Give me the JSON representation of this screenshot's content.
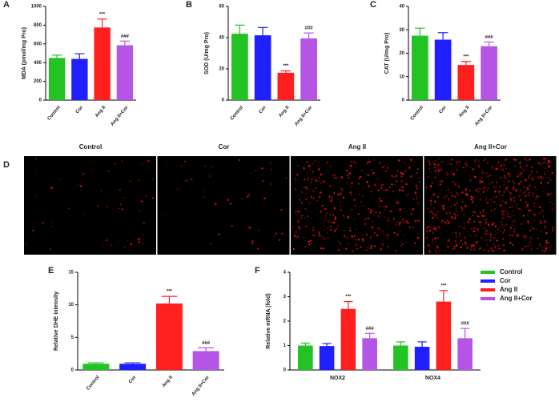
{
  "chart_data": [
    {
      "type": "bar",
      "panel": "A",
      "ylabel": "MDA (pmol/mg Pro)",
      "categories": [
        "Control",
        "Cor",
        "Ang II",
        "Ang II+Cor"
      ],
      "values": [
        450,
        440,
        775,
        585
      ],
      "errors": [
        30,
        55,
        90,
        45
      ],
      "annotations": [
        null,
        null,
        "***",
        "###"
      ],
      "colors": [
        "#22c322",
        "#1f1fff",
        "#ff1f1f",
        "#b455e6"
      ],
      "ylim": [
        0,
        1000
      ],
      "yticks": [
        0,
        200,
        400,
        600,
        800,
        1000
      ]
    },
    {
      "type": "bar",
      "panel": "B",
      "ylabel": "SOD (U/mg Pro)",
      "categories": [
        "Control",
        "Cor",
        "Ang II",
        "Ang II+Cor"
      ],
      "values": [
        42.5,
        41.5,
        17.5,
        39.5
      ],
      "errors": [
        5.5,
        5,
        1.2,
        3.5
      ],
      "annotations": [
        null,
        null,
        "***",
        "###"
      ],
      "colors": [
        "#22c322",
        "#1f1fff",
        "#ff1f1f",
        "#b455e6"
      ],
      "ylim": [
        0,
        60
      ],
      "yticks": [
        0,
        20,
        40,
        60
      ]
    },
    {
      "type": "bar",
      "panel": "C",
      "ylabel": "CAT (U/mg Pro)",
      "categories": [
        "Control",
        "Cor",
        "Ang II",
        "Ang II+Cor"
      ],
      "values": [
        27.5,
        25.8,
        15,
        23
      ],
      "errors": [
        3.2,
        3,
        1.5,
        1.8
      ],
      "annotations": [
        null,
        null,
        "***",
        "###"
      ],
      "colors": [
        "#22c322",
        "#1f1fff",
        "#ff1f1f",
        "#b455e6"
      ],
      "ylim": [
        0,
        40
      ],
      "yticks": [
        0,
        10,
        20,
        30,
        40
      ]
    },
    {
      "type": "bar",
      "panel": "E",
      "ylabel": "Relative DHE intensity",
      "categories": [
        "Control",
        "Cor",
        "Ang II",
        "Ang II+Cor"
      ],
      "values": [
        0.95,
        0.95,
        10.2,
        2.9
      ],
      "errors": [
        0.15,
        0.15,
        1.1,
        0.5
      ],
      "annotations": [
        null,
        null,
        "***",
        "###"
      ],
      "colors": [
        "#22c322",
        "#1f1fff",
        "#ff1f1f",
        "#b455e6"
      ],
      "ylim": [
        0,
        15
      ],
      "yticks": [
        0,
        5,
        10,
        15
      ]
    },
    {
      "type": "grouped-bar",
      "panel": "F",
      "ylabel": "Relative mRNA (fold)",
      "categories": [
        "NOX2",
        "NOX4"
      ],
      "series": [
        {
          "name": "Control",
          "color": "#22c322",
          "values": [
            1,
            1
          ],
          "errors": [
            0.1,
            0.15
          ],
          "annotations": [
            null,
            null
          ]
        },
        {
          "name": "Cor",
          "color": "#1f1fff",
          "values": [
            0.98,
            0.95
          ],
          "errors": [
            0.1,
            0.2
          ],
          "annotations": [
            null,
            null
          ]
        },
        {
          "name": "Ang II",
          "color": "#ff1f1f",
          "values": [
            2.5,
            2.8
          ],
          "errors": [
            0.3,
            0.45
          ],
          "annotations": [
            "***",
            "***"
          ]
        },
        {
          "name": "Ang II+Cor",
          "color": "#b455e6",
          "values": [
            1.3,
            1.3
          ],
          "errors": [
            0.2,
            0.4
          ],
          "annotations": [
            "###",
            "###"
          ]
        }
      ],
      "ylim": [
        0,
        4
      ],
      "yticks": [
        0,
        1,
        2,
        3,
        4
      ],
      "legend": "right"
    }
  ],
  "panel_d": {
    "panel": "D",
    "titles": [
      "Control",
      "Cor",
      "Ang II",
      "Ang II+Cor"
    ]
  }
}
